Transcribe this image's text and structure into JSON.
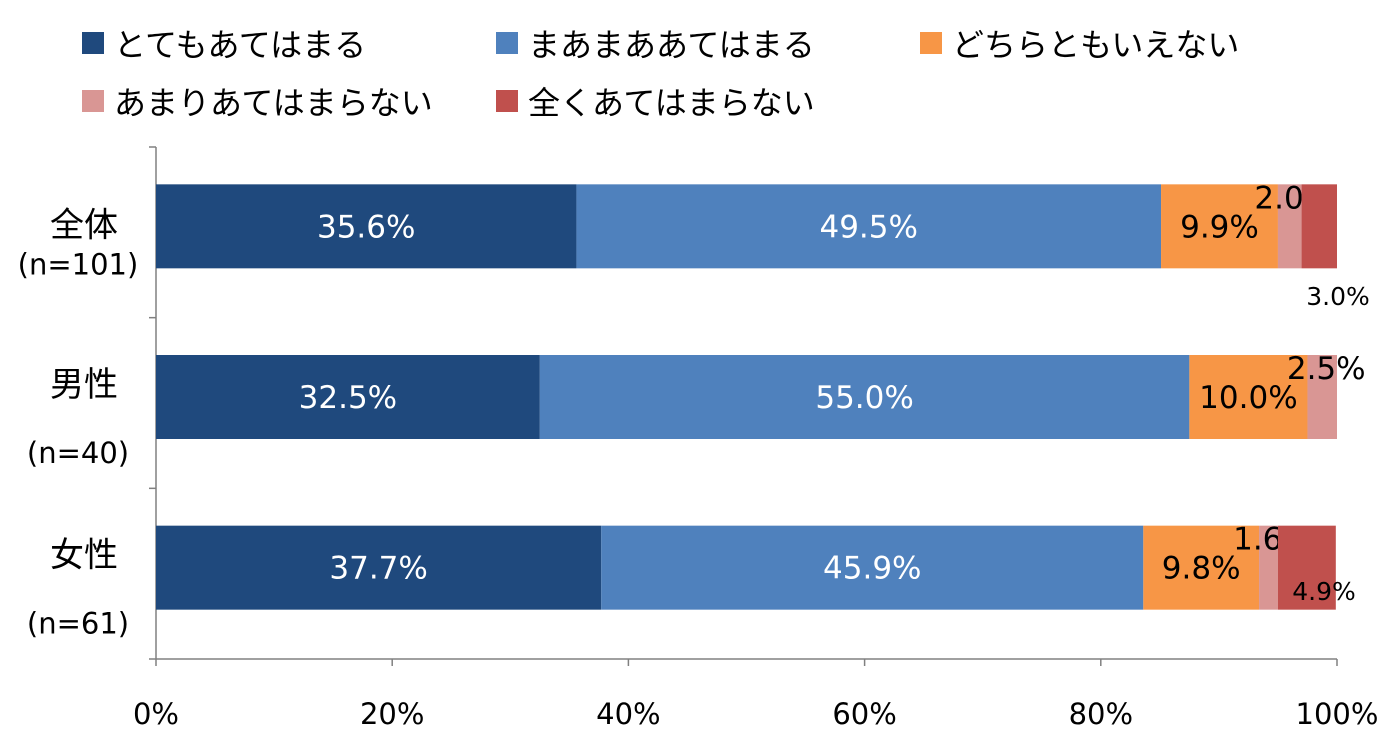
{
  "chart_data": {
    "type": "bar",
    "orientation": "horizontal",
    "stacked": true,
    "categories": [
      {
        "name": "全体",
        "n": "(n=101)"
      },
      {
        "name": "男性",
        "n": "(n=40)"
      },
      {
        "name": "女性",
        "n": "(n=61)"
      }
    ],
    "series": [
      {
        "name": "とてもあてはまる",
        "color": "#1F497D",
        "values": [
          35.6,
          32.5,
          37.7
        ],
        "labels": [
          "35.6%",
          "32.5%",
          "37.7%"
        ]
      },
      {
        "name": "まあまああてはまる",
        "color": "#4F81BD",
        "values": [
          49.5,
          55.0,
          45.9
        ],
        "labels": [
          "49.5%",
          "55.0%",
          "45.9%"
        ]
      },
      {
        "name": "どちらともいえない",
        "color": "#F79646",
        "values": [
          9.9,
          10.0,
          9.8
        ],
        "labels": [
          "9.9%",
          "10.0%",
          "9.8%"
        ]
      },
      {
        "name": "あまりあてはまらない",
        "color": "#D99694",
        "values": [
          2.0,
          2.5,
          1.6
        ],
        "labels": [
          "2.0%",
          "2.5%",
          "1.6%"
        ]
      },
      {
        "name": "全くあてはまらない",
        "color": "#C0504D",
        "values": [
          3.0,
          0,
          4.9
        ],
        "labels": [
          "3.0%",
          "",
          "4.9%"
        ]
      }
    ],
    "xlim": [
      0,
      100
    ],
    "x_ticks": [
      "0%",
      "20%",
      "40%",
      "60%",
      "80%",
      "100%"
    ],
    "legend_position": "top",
    "grid": false
  }
}
